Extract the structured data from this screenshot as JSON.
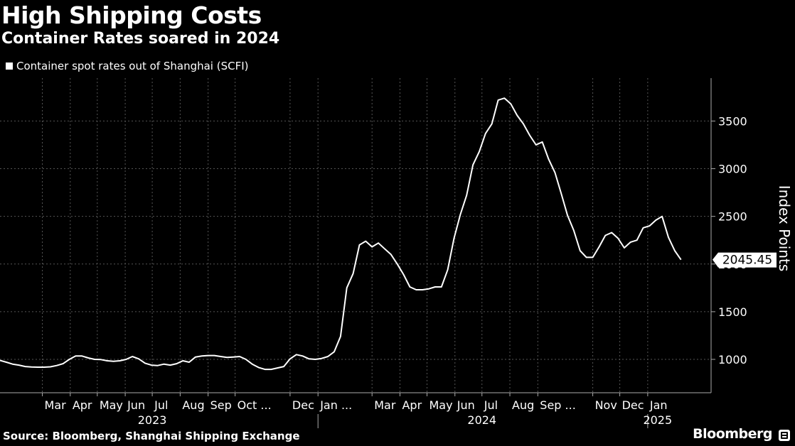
{
  "header": {
    "title": "High Shipping Costs",
    "subtitle": "Container Rates soared in 2024",
    "legend_label": "Container spot rates out of Shanghai (SCFI)"
  },
  "footer": {
    "source": "Source: Bloomberg, Shanghai Shipping Exchange",
    "brand": "Bloomberg"
  },
  "chart_data": {
    "type": "line",
    "title": "High Shipping Costs",
    "subtitle": "Container Rates soared in 2024",
    "ylabel": "Index Points",
    "ylim": [
      650,
      3950
    ],
    "y_ticks": [
      1000,
      1500,
      2000,
      2500,
      3000,
      3500
    ],
    "grid": true,
    "y_axis_side": "right",
    "x_range": [
      "2023-01-13",
      "2025-01-24"
    ],
    "x_ticks": [
      {
        "date": "2023-03-01",
        "label": "Mar"
      },
      {
        "date": "2023-04-01",
        "label": "Apr"
      },
      {
        "date": "2023-05-01",
        "label": "May"
      },
      {
        "date": "2023-06-01",
        "label": "Jun"
      },
      {
        "date": "2023-07-01",
        "label": "Jul"
      },
      {
        "date": "2023-08-01",
        "label": "Aug"
      },
      {
        "date": "2023-09-01",
        "label": "Sep"
      },
      {
        "date": "2023-10-01",
        "label": "Oct ..."
      },
      {
        "date": "2023-12-01",
        "label": "Dec"
      },
      {
        "date": "2024-01-01",
        "label": "Jan ..."
      },
      {
        "date": "2024-03-01",
        "label": "Mar"
      },
      {
        "date": "2024-04-01",
        "label": "Apr"
      },
      {
        "date": "2024-05-01",
        "label": "May"
      },
      {
        "date": "2024-06-01",
        "label": "Jun"
      },
      {
        "date": "2024-07-01",
        "label": "Jul"
      },
      {
        "date": "2024-08-01",
        "label": "Aug"
      },
      {
        "date": "2024-09-01",
        "label": "Sep ..."
      },
      {
        "date": "2024-11-01",
        "label": "Nov"
      },
      {
        "date": "2024-12-01",
        "label": "Dec"
      },
      {
        "date": "2025-01-01",
        "label": "Jan"
      }
    ],
    "year_labels": [
      {
        "date": "2023-07-01",
        "label": "2023"
      },
      {
        "date": "2024-07-01",
        "label": "2024"
      },
      {
        "date": "2025-01-12",
        "label": "2025"
      }
    ],
    "year_dividers": [
      "2024-01-01",
      "2025-01-01"
    ],
    "last_value_label": "2045.45",
    "series": [
      {
        "name": "Container spot rates out of Shanghai (SCFI)",
        "color": "#ffffff",
        "points": [
          [
            "2023-01-13",
            990
          ],
          [
            "2023-01-20",
            970
          ],
          [
            "2023-01-27",
            950
          ],
          [
            "2023-02-03",
            940
          ],
          [
            "2023-02-10",
            925
          ],
          [
            "2023-02-17",
            920
          ],
          [
            "2023-02-24",
            918
          ],
          [
            "2023-03-03",
            918
          ],
          [
            "2023-03-10",
            922
          ],
          [
            "2023-03-17",
            935
          ],
          [
            "2023-03-24",
            955
          ],
          [
            "2023-03-31",
            1000
          ],
          [
            "2023-04-07",
            1035
          ],
          [
            "2023-04-14",
            1035
          ],
          [
            "2023-04-21",
            1015
          ],
          [
            "2023-04-28",
            1000
          ],
          [
            "2023-05-05",
            998
          ],
          [
            "2023-05-12",
            985
          ],
          [
            "2023-05-19",
            980
          ],
          [
            "2023-05-26",
            985
          ],
          [
            "2023-06-02",
            1000
          ],
          [
            "2023-06-09",
            1030
          ],
          [
            "2023-06-16",
            1005
          ],
          [
            "2023-06-23",
            960
          ],
          [
            "2023-06-30",
            940
          ],
          [
            "2023-07-07",
            935
          ],
          [
            "2023-07-14",
            950
          ],
          [
            "2023-07-21",
            940
          ],
          [
            "2023-07-28",
            955
          ],
          [
            "2023-08-04",
            985
          ],
          [
            "2023-08-11",
            970
          ],
          [
            "2023-08-18",
            1025
          ],
          [
            "2023-08-25",
            1035
          ],
          [
            "2023-09-01",
            1040
          ],
          [
            "2023-09-08",
            1040
          ],
          [
            "2023-09-15",
            1030
          ],
          [
            "2023-09-22",
            1020
          ],
          [
            "2023-09-29",
            1025
          ],
          [
            "2023-10-06",
            1030
          ],
          [
            "2023-10-13",
            1000
          ],
          [
            "2023-10-20",
            950
          ],
          [
            "2023-10-27",
            915
          ],
          [
            "2023-11-03",
            895
          ],
          [
            "2023-11-10",
            895
          ],
          [
            "2023-11-17",
            910
          ],
          [
            "2023-11-24",
            925
          ],
          [
            "2023-12-01",
            1005
          ],
          [
            "2023-12-08",
            1050
          ],
          [
            "2023-12-15",
            1035
          ],
          [
            "2023-12-22",
            1005
          ],
          [
            "2023-12-29",
            1000
          ],
          [
            "2024-01-05",
            1010
          ],
          [
            "2024-01-12",
            1030
          ],
          [
            "2024-01-19",
            1080
          ],
          [
            "2024-01-26",
            1240
          ],
          [
            "2024-02-02",
            1750
          ],
          [
            "2024-02-09",
            1900
          ],
          [
            "2024-02-16",
            2200
          ],
          [
            "2024-02-23",
            2240
          ],
          [
            "2024-03-01",
            2180
          ],
          [
            "2024-03-08",
            2220
          ],
          [
            "2024-03-15",
            2160
          ],
          [
            "2024-03-22",
            2100
          ],
          [
            "2024-03-29",
            2000
          ],
          [
            "2024-04-05",
            1890
          ],
          [
            "2024-04-12",
            1760
          ],
          [
            "2024-04-19",
            1730
          ],
          [
            "2024-04-26",
            1730
          ],
          [
            "2024-05-03",
            1740
          ],
          [
            "2024-05-10",
            1760
          ],
          [
            "2024-05-17",
            1760
          ],
          [
            "2024-05-24",
            1940
          ],
          [
            "2024-05-31",
            2270
          ],
          [
            "2024-06-07",
            2520
          ],
          [
            "2024-06-14",
            2720
          ],
          [
            "2024-06-21",
            3040
          ],
          [
            "2024-06-28",
            3180
          ],
          [
            "2024-07-05",
            3370
          ],
          [
            "2024-07-12",
            3470
          ],
          [
            "2024-07-19",
            3720
          ],
          [
            "2024-07-26",
            3740
          ],
          [
            "2024-08-02",
            3680
          ],
          [
            "2024-08-09",
            3560
          ],
          [
            "2024-08-16",
            3470
          ],
          [
            "2024-08-23",
            3350
          ],
          [
            "2024-08-30",
            3250
          ],
          [
            "2024-09-06",
            3280
          ],
          [
            "2024-09-13",
            3100
          ],
          [
            "2024-09-20",
            2960
          ],
          [
            "2024-09-27",
            2740
          ],
          [
            "2024-10-04",
            2510
          ],
          [
            "2024-10-11",
            2350
          ],
          [
            "2024-10-18",
            2140
          ],
          [
            "2024-10-25",
            2070
          ],
          [
            "2024-11-01",
            2070
          ],
          [
            "2024-11-08",
            2180
          ],
          [
            "2024-11-15",
            2300
          ],
          [
            "2024-11-22",
            2330
          ],
          [
            "2024-11-29",
            2270
          ],
          [
            "2024-12-06",
            2170
          ],
          [
            "2024-12-13",
            2230
          ],
          [
            "2024-12-20",
            2250
          ],
          [
            "2024-12-27",
            2380
          ],
          [
            "2025-01-03",
            2400
          ],
          [
            "2025-01-10",
            2460
          ],
          [
            "2025-01-17",
            2500
          ],
          [
            "2025-01-24",
            2280
          ],
          [
            "2025-01-31",
            2140
          ],
          [
            "2025-02-07",
            2045.45
          ]
        ]
      }
    ]
  }
}
